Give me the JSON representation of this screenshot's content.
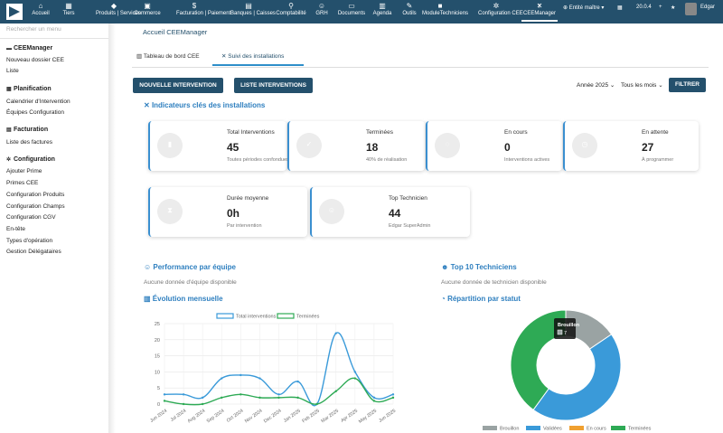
{
  "topbar": {
    "nav": [
      {
        "label": "Accueil",
        "icon": "home-icon",
        "glyph": "⌂"
      },
      {
        "label": "Tiers",
        "icon": "building-icon",
        "glyph": "▦"
      },
      {
        "label": "Produits | Services",
        "icon": "cube-icon",
        "glyph": "◆"
      },
      {
        "label": "Commerce",
        "icon": "briefcase-icon",
        "glyph": "▣"
      },
      {
        "label": "Facturation | Paiement",
        "icon": "money-icon",
        "glyph": "$"
      },
      {
        "label": "Banques | Caisses",
        "icon": "bank-icon",
        "glyph": "▤"
      },
      {
        "label": "Comptabilité",
        "icon": "search-dollar-icon",
        "glyph": "⚲"
      },
      {
        "label": "GRH",
        "icon": "users-icon",
        "glyph": "☺"
      },
      {
        "label": "Documents",
        "icon": "folder-icon",
        "glyph": "▭"
      },
      {
        "label": "Agenda",
        "icon": "calendar-icon",
        "glyph": "▥"
      },
      {
        "label": "Outils",
        "icon": "wrench-icon",
        "glyph": "✎"
      },
      {
        "label": "ModuleTechniciens",
        "icon": "module-icon",
        "glyph": "■"
      },
      {
        "label": "Configuration CEE",
        "icon": "cogs-icon",
        "glyph": "✲"
      },
      {
        "label": "CEEManager",
        "icon": "tools-icon",
        "glyph": "✕"
      }
    ],
    "entity": "Entité maître",
    "version": "20.0.4",
    "user": "Edgar"
  },
  "sidebar": {
    "search_placeholder": "Rechercher un menu",
    "sections": [
      {
        "title": "CEEManager",
        "items": [
          "Nouveau dossier CEE",
          "Liste"
        ]
      },
      {
        "title": "Planification",
        "items": [
          "Calendrier d'Intervention",
          "Équipes Configuration"
        ]
      },
      {
        "title": "Facturation",
        "items": [
          "Liste des factures"
        ]
      },
      {
        "title": "Configuration",
        "items": [
          "Ajouter Prime",
          "Primes CEE",
          "Configuration Produits",
          "Configuration Champs",
          "Configuration CGV",
          "En-tête",
          "Types d'opération",
          "Gestion Délégataires"
        ]
      }
    ]
  },
  "main": {
    "breadcrumb": "Accueil CEEManager",
    "tabs": [
      "Tableau de bord CEE",
      "Suivi des installations"
    ],
    "buttons": {
      "new_intervention": "NOUVELLE INTERVENTION",
      "list_interventions": "LISTE INTERVENTIONS",
      "filter": "FILTRER"
    },
    "filters": {
      "year": "Année 2025",
      "month": "Tous les mois"
    },
    "kpi_title": "Indicateurs clés des installations",
    "kpis": [
      {
        "label": "Total Interventions",
        "value": "45",
        "sub": "Toutes périodes confondues",
        "icon": "clipboard-icon"
      },
      {
        "label": "Terminées",
        "value": "18",
        "sub": "40% de réalisation",
        "icon": "check-icon"
      },
      {
        "label": "En cours",
        "value": "0",
        "sub": "Interventions actives",
        "icon": "spinner-icon"
      },
      {
        "label": "En attente",
        "value": "27",
        "sub": "À programmer",
        "icon": "clock-icon"
      },
      {
        "label": "Durée moyenne",
        "value": "0h",
        "sub": "Par intervention",
        "icon": "hourglass-icon"
      },
      {
        "label": "Top Technicien",
        "value": "44",
        "sub": "Edgar SuperAdmin",
        "icon": "user-icon"
      }
    ],
    "team_title": "Performance par équipe",
    "team_empty": "Aucune donnée d'équipe disponible",
    "tech_title": "Top 10 Techniciens",
    "tech_empty": "Aucune donnée de technicien disponible",
    "evolution_title": "Évolution mensuelle",
    "status_title": "Répartition par statut",
    "tooltip": {
      "label": "Brouillon",
      "value": "7"
    }
  },
  "chart_data": [
    {
      "type": "line",
      "x": [
        "Jun 2024",
        "Jul 2024",
        "Aug 2024",
        "Sep 2024",
        "Oct 2024",
        "Nov 2024",
        "Dec 2024",
        "Jan 2025",
        "Feb 2025",
        "Mar 2025",
        "Apr 2025",
        "May 2025",
        "Jun 2025"
      ],
      "series": [
        {
          "name": "Total interventions",
          "values": [
            3,
            3,
            2,
            8,
            9,
            8,
            3,
            7,
            0,
            22,
            10,
            2,
            3
          ],
          "color": "#3a9ad9"
        },
        {
          "name": "Terminées",
          "values": [
            1,
            0,
            0,
            2,
            3,
            2,
            2,
            2,
            0,
            4,
            8,
            1,
            2
          ],
          "color": "#2eaa55"
        }
      ],
      "ylim": [
        0,
        25
      ],
      "yticks": [
        0,
        5,
        10,
        15,
        20,
        25
      ],
      "legend": "top",
      "grid": true
    },
    {
      "type": "pie",
      "categories": [
        "Brouillon",
        "Validées",
        "En cours",
        "Terminées"
      ],
      "values": [
        7,
        20,
        0,
        18
      ],
      "colors": [
        "#9aa3a3",
        "#3a9ad9",
        "#f0a030",
        "#2eaa55"
      ],
      "legend": "bottom"
    }
  ]
}
